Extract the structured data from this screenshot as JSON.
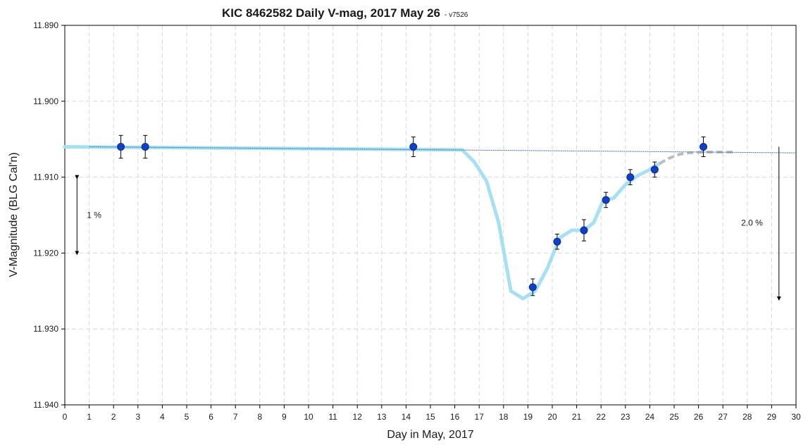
{
  "chart_data": {
    "type": "line",
    "title": "KIC 8462582 Daily V-mag, 2017 May 26",
    "subtitle": "- v7526",
    "xlabel": "Day in May, 2017",
    "ylabel": "V-Magnitude (BLG Cal'n)",
    "xlim": [
      0,
      30
    ],
    "ylim": [
      11.89,
      11.94
    ],
    "y_inverted": true,
    "x_ticks": [
      0,
      1,
      2,
      3,
      4,
      5,
      6,
      7,
      8,
      9,
      10,
      11,
      12,
      13,
      14,
      15,
      16,
      17,
      18,
      19,
      20,
      21,
      22,
      23,
      24,
      25,
      26,
      27,
      28,
      29,
      30
    ],
    "y_ticks": [
      "11.890",
      "11.900",
      "11.910",
      "11.920",
      "11.930",
      "11.940"
    ],
    "grid": true,
    "series": [
      {
        "style": "model-curve",
        "color": "#a6e0f2",
        "x": [
          0,
          16.3,
          16.8,
          17.3,
          17.8,
          18.3,
          18.8,
          19.3,
          19.8,
          20.3,
          20.8,
          21.3,
          21.7,
          22.1,
          22.5,
          23.0,
          23.5,
          24.0,
          24.4
        ],
        "y": [
          11.906,
          11.9064,
          11.908,
          11.9105,
          11.916,
          11.925,
          11.926,
          11.925,
          11.922,
          11.918,
          11.917,
          11.917,
          11.916,
          11.913,
          11.9128,
          11.911,
          11.9098,
          11.909,
          11.9082
        ]
      },
      {
        "style": "model-curve-dashed",
        "color": "#b9bec4",
        "x": [
          24.4,
          24.8,
          25.2,
          25.6,
          26.2,
          27.0,
          27.5
        ],
        "y": [
          11.9082,
          11.9075,
          11.907,
          11.9068,
          11.9067,
          11.9067,
          11.9067
        ]
      },
      {
        "style": "trend-line",
        "color": "#3f6f9e",
        "x": [
          1,
          30
        ],
        "y": [
          11.906,
          11.9068
        ]
      },
      {
        "style": "observations",
        "color": "#1140c8",
        "x": [
          2.3,
          3.3,
          14.3,
          19.2,
          20.2,
          21.3,
          22.2,
          23.2,
          24.2,
          26.2
        ],
        "y": [
          11.906,
          11.906,
          11.906,
          11.9245,
          11.9185,
          11.917,
          11.913,
          11.91,
          11.909,
          11.906
        ],
        "err": [
          0.0015,
          0.0015,
          0.0013,
          0.0011,
          0.001,
          0.0014,
          0.001,
          0.001,
          0.001,
          0.0013
        ]
      }
    ],
    "annotations": [
      {
        "text": "1 %",
        "x": 0.5,
        "y_from": 11.91,
        "y_to": 11.92
      },
      {
        "text": "2.0 %",
        "x": 29.3,
        "y_from": 11.906,
        "y_to": 11.926
      }
    ]
  }
}
